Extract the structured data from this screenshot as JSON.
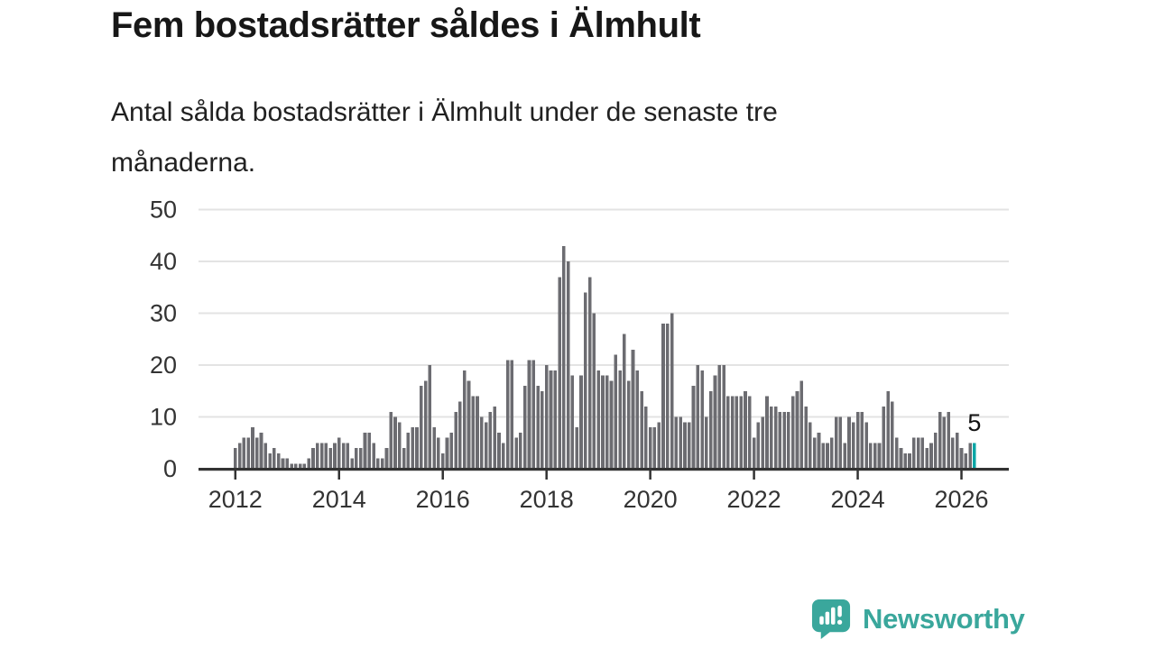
{
  "title": "Fem bostadsrätter såldes i Älmhult",
  "subtitle": "Antal sålda bostadsrätter i Älmhult under de senaste tre månaderna.",
  "subtitle_lines": [
    "Antal sålda bostadsrätter i Älmhult under de senaste tre",
    "månaderna."
  ],
  "branding": {
    "name": "Newsworthy",
    "logo_icon": "chart-speech-bubble-icon",
    "color": "#3aa79c"
  },
  "colors": {
    "bar": "#6c6c71",
    "highlight": "#0aa6a6",
    "grid": "#e3e3e3",
    "axis": "#333333",
    "text": "#171717"
  },
  "chart_data": {
    "type": "bar",
    "title": "Fem bostadsrätter såldes i Älmhult",
    "subtitle": "Antal sålda bostadsrätter i Älmhult under de senaste tre månaderna.",
    "xlabel": "",
    "ylabel": "",
    "ylim": [
      0,
      50
    ],
    "y_ticks": [
      0,
      10,
      20,
      30,
      40,
      50
    ],
    "grid": "horizontal",
    "legend": "none",
    "x_unit": "month",
    "x_start": "2012-01",
    "x_end": "2026-04",
    "x_tick_labels": [
      "2012",
      "2014",
      "2016",
      "2018",
      "2020",
      "2022",
      "2024",
      "2026"
    ],
    "x_tick_indices": [
      0,
      24,
      48,
      72,
      96,
      120,
      144,
      168
    ],
    "values": [
      4,
      5,
      6,
      6,
      8,
      6,
      7,
      5,
      3,
      4,
      3,
      2,
      2,
      1,
      1,
      1,
      1,
      2,
      4,
      5,
      5,
      5,
      4,
      5,
      6,
      5,
      5,
      2,
      4,
      4,
      7,
      7,
      5,
      2,
      2,
      4,
      11,
      10,
      9,
      4,
      7,
      8,
      8,
      16,
      17,
      20,
      8,
      6,
      3,
      6,
      7,
      11,
      13,
      19,
      17,
      14,
      14,
      10,
      9,
      11,
      12,
      7,
      5,
      21,
      21,
      6,
      7,
      16,
      21,
      21,
      16,
      15,
      20,
      19,
      19,
      37,
      43,
      40,
      18,
      8,
      18,
      34,
      37,
      30,
      19,
      18,
      18,
      17,
      22,
      19,
      26,
      17,
      23,
      19,
      15,
      12,
      8,
      8,
      9,
      28,
      28,
      30,
      10,
      10,
      9,
      9,
      16,
      20,
      19,
      10,
      15,
      18,
      20,
      20,
      14,
      14,
      14,
      14,
      15,
      14,
      6,
      9,
      10,
      14,
      12,
      12,
      11,
      11,
      11,
      14,
      15,
      17,
      12,
      9,
      6,
      7,
      5,
      5,
      6,
      10,
      10,
      5,
      10,
      9,
      11,
      11,
      9,
      5,
      5,
      5,
      12,
      15,
      13,
      6,
      4,
      3,
      3,
      6,
      6,
      6,
      4,
      5,
      7,
      11,
      10,
      11,
      6,
      7,
      4,
      3,
      5,
      5
    ],
    "highlight_last_bar": true,
    "last_value_label": "5"
  }
}
